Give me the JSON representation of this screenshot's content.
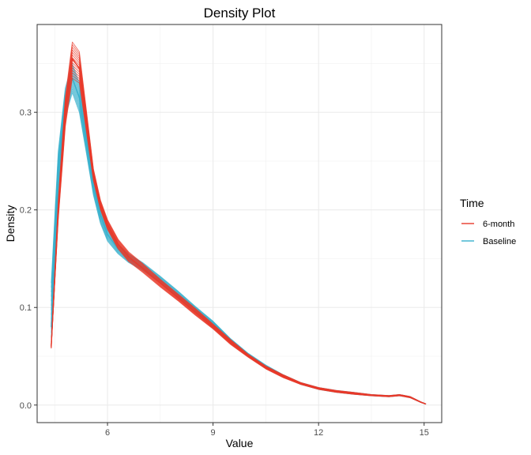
{
  "chart_data": {
    "type": "line",
    "title": "Density Plot",
    "xlabel": "Value",
    "ylabel": "Density",
    "xlim": [
      4.0,
      15.5
    ],
    "ylim": [
      -0.018,
      0.39
    ],
    "xticks": [
      6,
      9,
      12,
      15
    ],
    "yticks": [
      0.0,
      0.1,
      0.2,
      0.3
    ],
    "xtick_labels": [
      "6",
      "9",
      "12",
      "15"
    ],
    "ytick_labels": [
      "0.0",
      "0.1",
      "0.2",
      "0.3"
    ],
    "grid": true,
    "legend": {
      "title": "Time",
      "position": "right"
    },
    "series": [
      {
        "name": "6-month",
        "color": "#e8392a",
        "x": [
          4.4,
          4.6,
          4.8,
          5.0,
          5.2,
          5.4,
          5.6,
          5.8,
          6.0,
          6.3,
          6.6,
          7.0,
          7.5,
          8.0,
          8.5,
          9.0,
          9.5,
          10.0,
          10.5,
          11.0,
          11.5,
          12.0,
          12.5,
          13.0,
          13.5,
          14.0,
          14.3,
          14.6,
          14.9,
          15.05
        ],
        "values": [
          0.06,
          0.2,
          0.3,
          0.355,
          0.345,
          0.29,
          0.235,
          0.205,
          0.185,
          0.165,
          0.152,
          0.14,
          0.125,
          0.11,
          0.095,
          0.08,
          0.064,
          0.05,
          0.038,
          0.029,
          0.022,
          0.017,
          0.014,
          0.012,
          0.01,
          0.009,
          0.01,
          0.008,
          0.003,
          0.001
        ],
        "band_low": [
          0.058,
          0.19,
          0.285,
          0.335,
          0.33,
          0.28,
          0.23,
          0.2,
          0.18,
          0.16,
          0.147,
          0.136,
          0.121,
          0.107,
          0.092,
          0.078,
          0.062,
          0.049,
          0.037,
          0.028,
          0.021,
          0.016,
          0.013,
          0.011,
          0.0095,
          0.0085,
          0.0095,
          0.0075,
          0.0028,
          0.0009
        ],
        "band_high": [
          0.062,
          0.21,
          0.315,
          0.372,
          0.362,
          0.302,
          0.242,
          0.21,
          0.19,
          0.17,
          0.157,
          0.145,
          0.129,
          0.114,
          0.099,
          0.083,
          0.067,
          0.052,
          0.04,
          0.031,
          0.023,
          0.018,
          0.015,
          0.013,
          0.0108,
          0.0098,
          0.0108,
          0.0088,
          0.0034,
          0.0012
        ]
      },
      {
        "name": "Baseline",
        "color": "#38b0cc",
        "x": [
          4.4,
          4.6,
          4.8,
          5.0,
          5.2,
          5.4,
          5.6,
          5.8,
          6.0,
          6.3,
          6.6,
          7.0,
          7.5,
          8.0,
          8.5,
          9.0,
          9.5,
          10.0,
          10.5,
          11.0,
          11.5,
          12.0,
          12.5,
          13.0,
          13.5,
          14.0,
          14.3,
          14.6,
          14.9,
          15.05
        ],
        "values": [
          0.08,
          0.24,
          0.31,
          0.335,
          0.315,
          0.27,
          0.225,
          0.195,
          0.175,
          0.16,
          0.15,
          0.141,
          0.128,
          0.113,
          0.098,
          0.083,
          0.066,
          0.051,
          0.039,
          0.03,
          0.022,
          0.017,
          0.014,
          0.012,
          0.01,
          0.009,
          0.01,
          0.008,
          0.003,
          0.001
        ],
        "band_low": [
          0.06,
          0.22,
          0.295,
          0.32,
          0.3,
          0.258,
          0.215,
          0.186,
          0.168,
          0.155,
          0.146,
          0.138,
          0.125,
          0.11,
          0.095,
          0.081,
          0.064,
          0.05,
          0.038,
          0.029,
          0.021,
          0.016,
          0.013,
          0.011,
          0.0095,
          0.0085,
          0.0095,
          0.0075,
          0.0028,
          0.0009
        ],
        "band_high": [
          0.125,
          0.26,
          0.325,
          0.35,
          0.33,
          0.283,
          0.234,
          0.203,
          0.182,
          0.165,
          0.155,
          0.146,
          0.132,
          0.117,
          0.101,
          0.086,
          0.068,
          0.053,
          0.041,
          0.031,
          0.023,
          0.018,
          0.015,
          0.013,
          0.0108,
          0.0098,
          0.0108,
          0.0088,
          0.0034,
          0.0012
        ]
      }
    ]
  }
}
